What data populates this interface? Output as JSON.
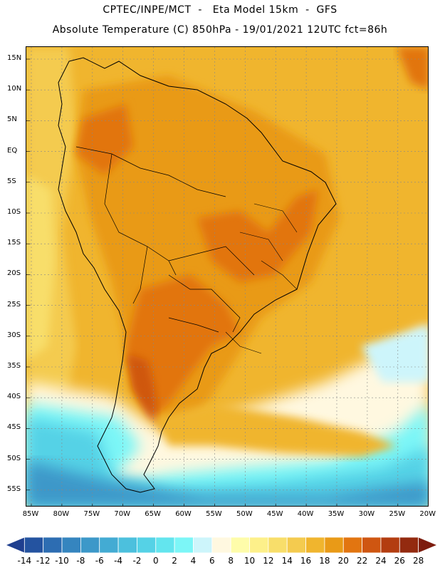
{
  "header": {
    "title_line1": "CPTEC/INPE/MCT  -   Eta Model 15km  -  GFS",
    "title_line2": "Absolute Temperature (C) 850hPa - 19/01/2021 12UTC fct=86h"
  },
  "map": {
    "variable": "Absolute Temperature",
    "units": "C",
    "level": "850hPa",
    "lat_ticks": [
      "15N",
      "10N",
      "5N",
      "EQ",
      "5S",
      "10S",
      "15S",
      "20S",
      "25S",
      "30S",
      "35S",
      "40S",
      "45S",
      "50S",
      "55S"
    ],
    "lon_ticks": [
      "85W",
      "80W",
      "75W",
      "70W",
      "65W",
      "60W",
      "55W",
      "50W",
      "45W",
      "40W",
      "35W",
      "30W",
      "25W",
      "20W"
    ]
  },
  "colorbar": {
    "labels": [
      "-14",
      "-12",
      "-10",
      "-8",
      "-6",
      "-4",
      "-2",
      "0",
      "2",
      "4",
      "6",
      "8",
      "10",
      "12",
      "14",
      "16",
      "18",
      "20",
      "22",
      "24",
      "26",
      "28"
    ],
    "colors": [
      "#1f3f8f",
      "#2453a0",
      "#2d6db2",
      "#3585bf",
      "#3c98c9",
      "#43abd3",
      "#4cc0dd",
      "#55d2e6",
      "#63e5ee",
      "#7cf6f7",
      "#cdf5fb",
      "#fff8e0",
      "#fefcaa",
      "#fdf08a",
      "#f8de6a",
      "#f4cb4f",
      "#f0b52e",
      "#e99a17",
      "#e27510",
      "#cf5611",
      "#b33d10",
      "#932a0f",
      "#7d1c0e"
    ],
    "colors_note": "23 boxes, first/last are triangular ends"
  }
}
